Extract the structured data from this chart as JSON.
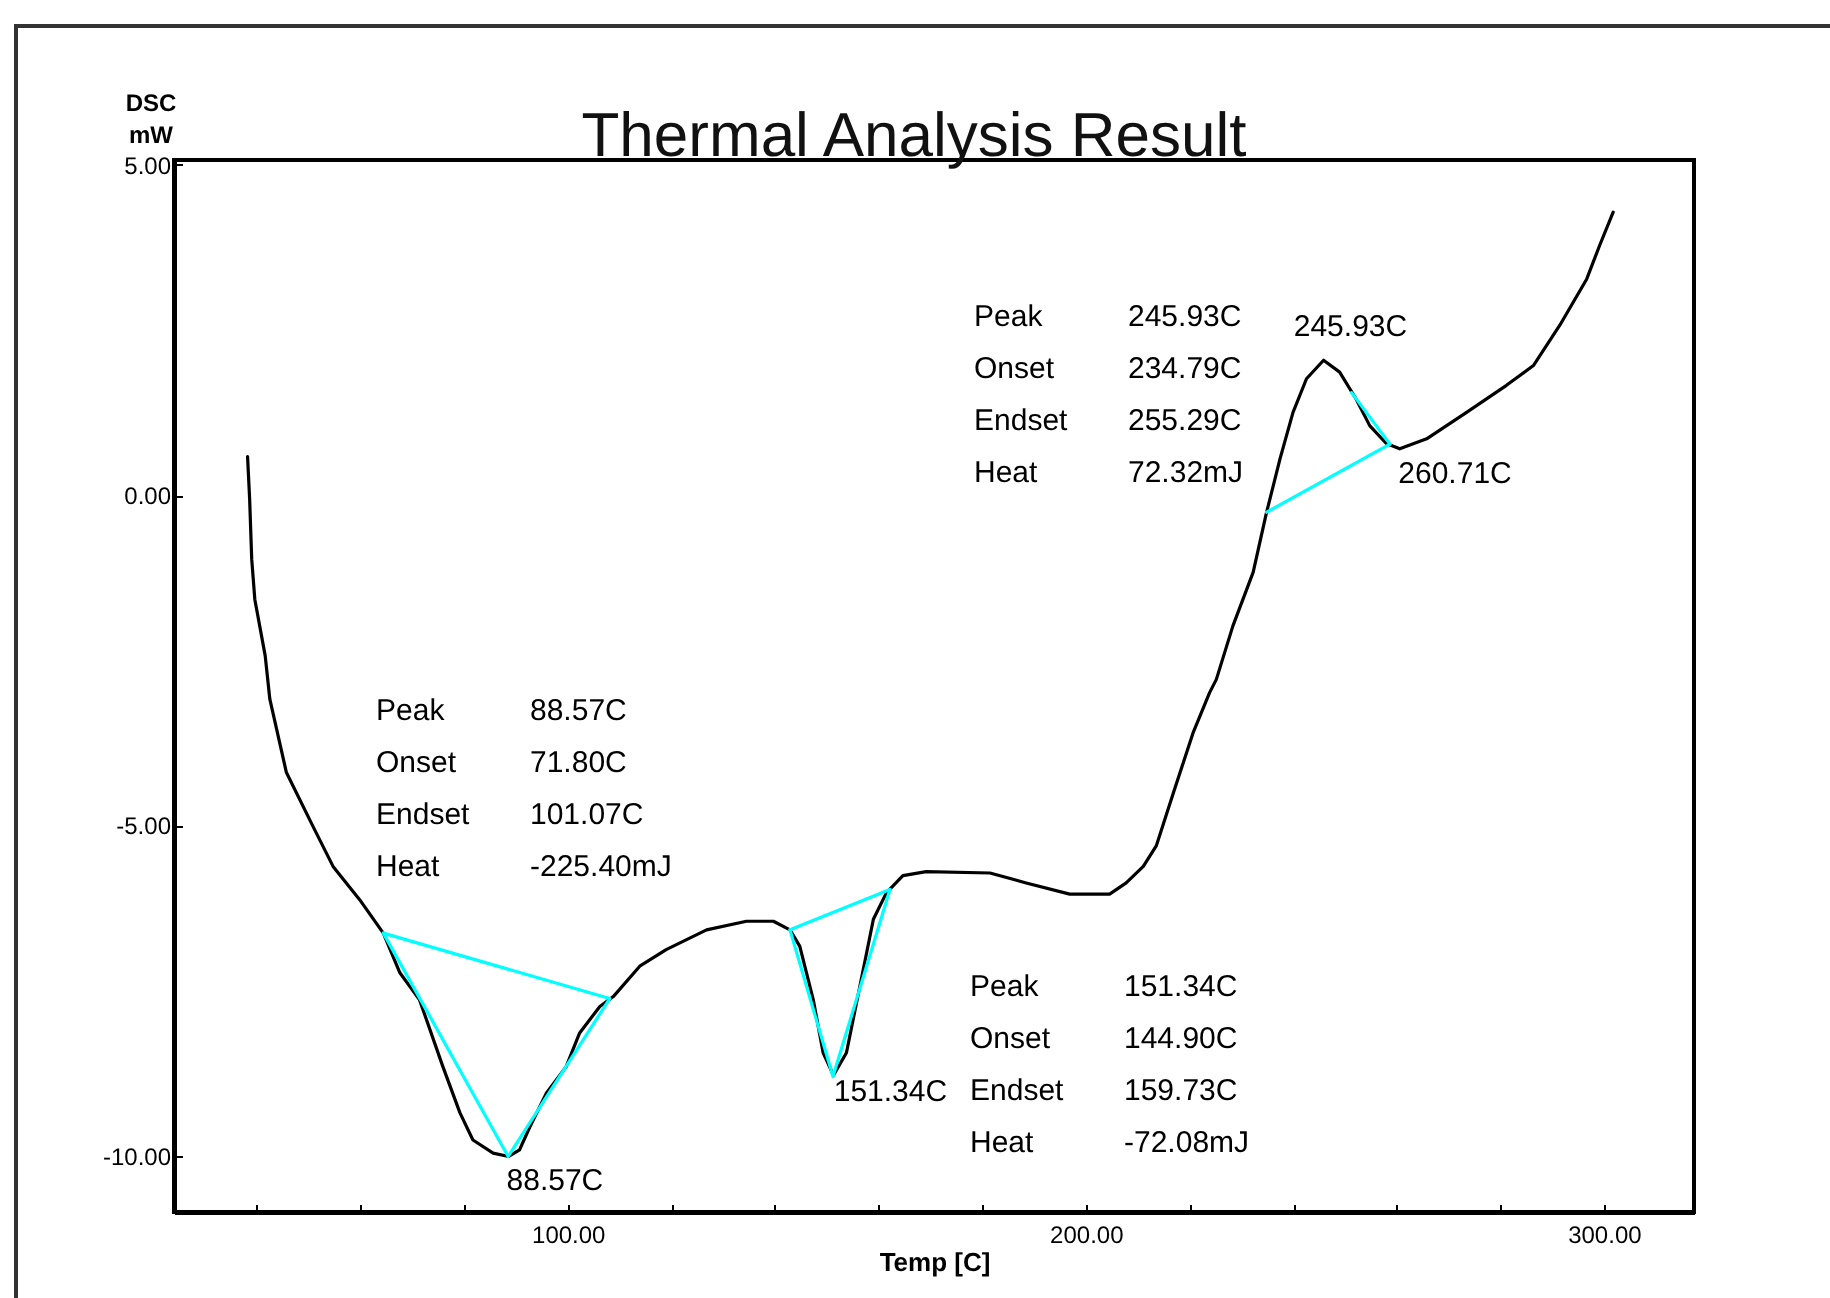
{
  "chart_data": {
    "type": "line",
    "title": "Thermal Analysis Result",
    "xlabel": "Temp [C]",
    "ylabel": "DSC\nmW",
    "series": [
      {
        "color": "#000000",
        "x": [
          38.2,
          38.6,
          39.0,
          39.6,
          41.6,
          42.5,
          45.7,
          50.8,
          54.7,
          59.8,
          64.4,
          67.6,
          71.4,
          75.9,
          79.2,
          81.7,
          85.6,
          88.6,
          90.7,
          92.7,
          95.9,
          99.7,
          102.3,
          106.2,
          108.8,
          113.9,
          119.0,
          126.8,
          134.5,
          139.7,
          142.9,
          144.8,
          147.4,
          149.3,
          151.3,
          153.8,
          156.4,
          159.0,
          161.5,
          164.7,
          169.2,
          181.5,
          188.5,
          196.9,
          204.6,
          207.8,
          211.1,
          213.6,
          216.9,
          220.7,
          223.9,
          225.2,
          228.4,
          232.3,
          234.9,
          237.5,
          240.0,
          242.6,
          245.9,
          249.0,
          252.2,
          254.8,
          258.0,
          260.6,
          265.8,
          273.5,
          281.2,
          286.4,
          291.5,
          296.7,
          299.2,
          301.8
        ],
        "values": [
          0.58,
          -0.06,
          -0.97,
          -1.58,
          -2.43,
          -3.09,
          -4.2,
          -5.01,
          -5.62,
          -6.12,
          -6.63,
          -7.23,
          -7.64,
          -8.65,
          -9.35,
          -9.76,
          -9.96,
          -10.01,
          -9.91,
          -9.56,
          -9.05,
          -8.65,
          -8.14,
          -7.74,
          -7.59,
          -7.13,
          -6.88,
          -6.58,
          -6.45,
          -6.45,
          -6.58,
          -6.83,
          -7.64,
          -8.44,
          -8.78,
          -8.44,
          -7.43,
          -6.42,
          -6.02,
          -5.76,
          -5.7,
          -5.72,
          -5.87,
          -6.04,
          -6.04,
          -5.87,
          -5.62,
          -5.31,
          -4.51,
          -3.6,
          -2.99,
          -2.79,
          -1.98,
          -1.17,
          -0.26,
          0.55,
          1.25,
          1.76,
          2.04,
          1.86,
          1.45,
          1.05,
          0.78,
          0.7,
          0.85,
          1.25,
          1.66,
          1.96,
          2.57,
          3.27,
          3.78,
          4.28
        ]
      },
      {
        "type": "line",
        "color": "#00ffff",
        "x": [
          64.4,
          88.5,
          108.1
        ],
        "values": [
          -6.63,
          -10.01,
          -7.62
        ]
      },
      {
        "type": "line",
        "color": "#00ffff",
        "x": [
          64.4,
          108.1
        ],
        "values": [
          -6.63,
          -7.62
        ]
      },
      {
        "type": "line",
        "color": "#00ffff",
        "x": [
          142.9,
          151.2,
          162.2
        ],
        "values": [
          -6.58,
          -8.8,
          -5.97
        ]
      },
      {
        "type": "line",
        "color": "#00ffff",
        "x": [
          142.9,
          162.2
        ],
        "values": [
          -6.58,
          -5.97
        ]
      },
      {
        "type": "line",
        "color": "#00ffff",
        "x": [
          234.9,
          258.7
        ],
        "values": [
          -0.26,
          0.77
        ]
      },
      {
        "type": "line",
        "color": "#00ffff",
        "x": [
          251.3,
          258.7
        ],
        "values": [
          1.55,
          0.77
        ]
      }
    ],
    "xlim": [
      24,
      317.4
    ],
    "ylim": [
      -10.85,
      5.07
    ],
    "xticks": [
      {
        "value": 40,
        "label": null
      },
      {
        "value": 60,
        "label": null
      },
      {
        "value": 80,
        "label": null
      },
      {
        "value": 100,
        "label": "100.00"
      },
      {
        "value": 120,
        "label": null
      },
      {
        "value": 140,
        "label": null
      },
      {
        "value": 160,
        "label": null
      },
      {
        "value": 180,
        "label": null
      },
      {
        "value": 200,
        "label": "200.00"
      },
      {
        "value": 220,
        "label": null
      },
      {
        "value": 240,
        "label": null
      },
      {
        "value": 260,
        "label": null
      },
      {
        "value": 280,
        "label": null
      },
      {
        "value": 300,
        "label": "300.00"
      }
    ],
    "yticks": [
      {
        "value": 5,
        "label": "5.00"
      },
      {
        "value": 0,
        "label": "0.00"
      },
      {
        "value": -5,
        "label": "-5.00"
      },
      {
        "value": -10,
        "label": "-10.00"
      }
    ],
    "annotations": [
      "Peak 245.93C",
      "Onset 234.79C",
      "Endset 255.29C",
      "Heat 72.32mJ",
      {
        "text": "245.93C",
        "x": 245.93,
        "y": 2.04
      },
      {
        "text": "260.71C",
        "x": 260.71,
        "y": 0.7
      },
      "Peak 88.57C",
      "Onset 71.80C",
      "Endset 101.07C",
      "Heat -225.40mJ",
      {
        "text": "88.57C",
        "x": 88.57,
        "y": -10.0
      },
      {
        "text": "151.34C",
        "x": 151.34,
        "y": -8.8
      },
      "Peak 151.34C",
      "Onset 144.90C",
      "Endset 159.73C",
      "Heat -72.08mJ"
    ]
  }
}
